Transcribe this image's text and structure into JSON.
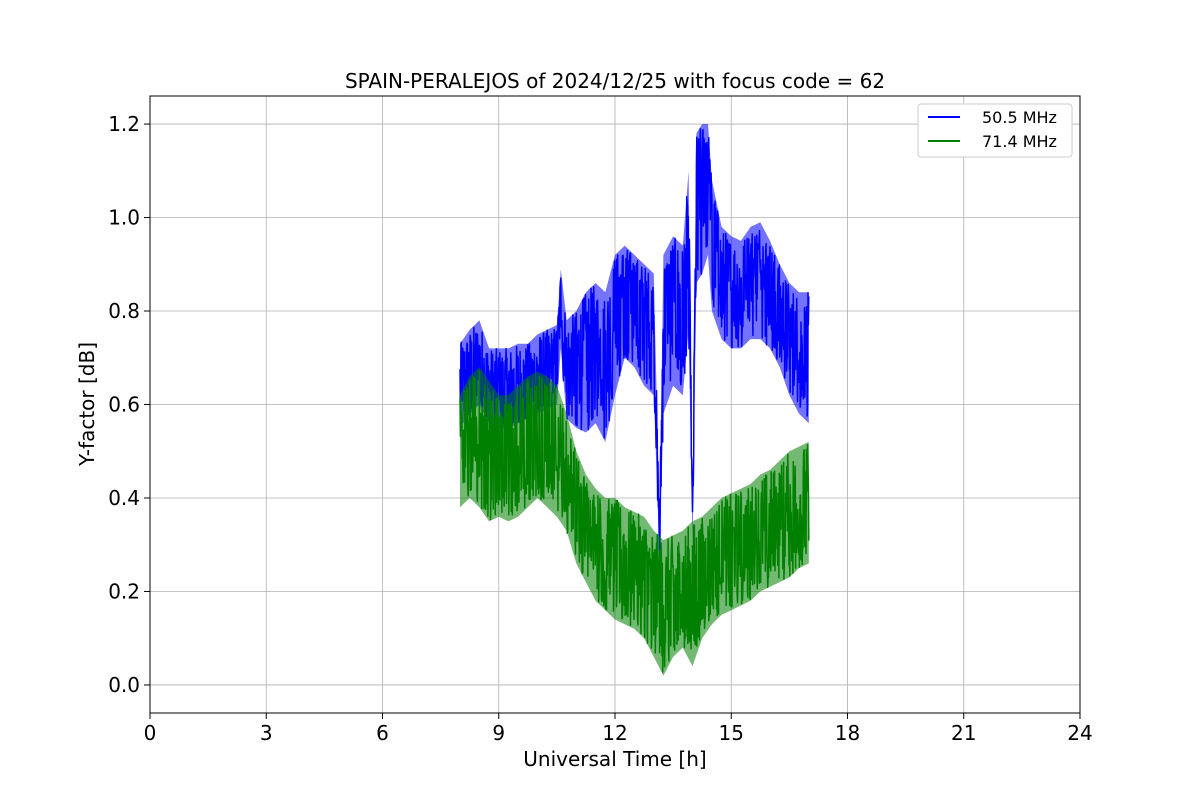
{
  "chart_data": {
    "type": "line",
    "title": "SPAIN-PERALEJOS of 2024/12/25 with focus code = 62",
    "xlabel": "Universal Time [h]",
    "ylabel": "Y-factor [dB]",
    "xlim": [
      0,
      24
    ],
    "ylim": [
      -0.06,
      1.26
    ],
    "xticks": [
      0,
      3,
      6,
      9,
      12,
      15,
      18,
      21,
      24
    ],
    "xtick_labels": [
      "0",
      "3",
      "6",
      "9",
      "12",
      "15",
      "18",
      "21",
      "24"
    ],
    "yticks": [
      0.0,
      0.2,
      0.4,
      0.6,
      0.8,
      1.0,
      1.2
    ],
    "ytick_labels": [
      "0.0",
      "0.2",
      "0.4",
      "0.6",
      "0.8",
      "1.0",
      "1.2"
    ],
    "grid": true,
    "legend_position": "top-right",
    "series": [
      {
        "name": "50.5 MHz",
        "color": "#0000ff",
        "x": [
          8.0,
          8.25,
          8.5,
          8.75,
          9.0,
          9.25,
          9.5,
          9.75,
          10.0,
          10.25,
          10.5,
          10.6,
          10.75,
          11.0,
          11.25,
          11.5,
          11.75,
          12.0,
          12.25,
          12.5,
          12.75,
          13.0,
          13.15,
          13.25,
          13.5,
          13.75,
          13.9,
          14.0,
          14.1,
          14.25,
          14.4,
          14.5,
          14.75,
          15.0,
          15.25,
          15.5,
          15.75,
          16.0,
          16.25,
          16.5,
          16.75,
          17.0
        ],
        "y": [
          0.64,
          0.66,
          0.68,
          0.64,
          0.63,
          0.63,
          0.64,
          0.64,
          0.66,
          0.67,
          0.68,
          0.84,
          0.68,
          0.7,
          0.71,
          0.72,
          0.68,
          0.82,
          0.86,
          0.84,
          0.8,
          0.76,
          0.3,
          0.78,
          0.84,
          0.8,
          0.95,
          0.33,
          1.05,
          1.1,
          1.17,
          0.98,
          0.86,
          0.85,
          0.84,
          0.88,
          0.9,
          0.86,
          0.8,
          0.74,
          0.7,
          0.65
        ],
        "lower": [
          0.55,
          0.58,
          0.6,
          0.56,
          0.55,
          0.55,
          0.56,
          0.57,
          0.58,
          0.59,
          0.6,
          0.72,
          0.57,
          0.55,
          0.54,
          0.56,
          0.52,
          0.62,
          0.7,
          0.68,
          0.64,
          0.62,
          0.27,
          0.58,
          0.64,
          0.62,
          0.76,
          0.3,
          0.86,
          0.88,
          0.92,
          0.8,
          0.74,
          0.72,
          0.72,
          0.74,
          0.74,
          0.72,
          0.68,
          0.62,
          0.58,
          0.56
        ],
        "upper": [
          0.73,
          0.76,
          0.78,
          0.72,
          0.72,
          0.72,
          0.73,
          0.73,
          0.75,
          0.76,
          0.77,
          0.89,
          0.78,
          0.8,
          0.84,
          0.86,
          0.84,
          0.92,
          0.94,
          0.92,
          0.9,
          0.88,
          0.35,
          0.92,
          0.96,
          0.94,
          1.1,
          0.38,
          1.18,
          1.2,
          1.2,
          1.08,
          0.98,
          0.96,
          0.95,
          0.98,
          0.99,
          0.95,
          0.9,
          0.86,
          0.84,
          0.84
        ]
      },
      {
        "name": "71.4 MHz",
        "color": "#008000",
        "x": [
          8.0,
          8.25,
          8.5,
          8.75,
          9.0,
          9.25,
          9.5,
          9.75,
          10.0,
          10.25,
          10.5,
          10.75,
          11.0,
          11.25,
          11.5,
          11.75,
          12.0,
          12.25,
          12.5,
          12.75,
          13.0,
          13.25,
          13.5,
          13.75,
          14.0,
          14.25,
          14.5,
          14.75,
          15.0,
          15.25,
          15.5,
          15.75,
          16.0,
          16.25,
          16.5,
          16.75,
          17.0
        ],
        "y": [
          0.5,
          0.52,
          0.51,
          0.5,
          0.49,
          0.48,
          0.5,
          0.52,
          0.53,
          0.5,
          0.49,
          0.44,
          0.38,
          0.34,
          0.3,
          0.28,
          0.28,
          0.27,
          0.26,
          0.24,
          0.2,
          0.18,
          0.19,
          0.2,
          0.22,
          0.23,
          0.26,
          0.27,
          0.28,
          0.28,
          0.29,
          0.31,
          0.32,
          0.34,
          0.35,
          0.37,
          0.38
        ],
        "lower": [
          0.38,
          0.4,
          0.38,
          0.35,
          0.36,
          0.35,
          0.36,
          0.38,
          0.4,
          0.38,
          0.36,
          0.33,
          0.26,
          0.22,
          0.18,
          0.16,
          0.14,
          0.13,
          0.12,
          0.1,
          0.06,
          0.02,
          0.06,
          0.08,
          0.04,
          0.1,
          0.13,
          0.15,
          0.16,
          0.17,
          0.18,
          0.2,
          0.21,
          0.22,
          0.23,
          0.25,
          0.26
        ],
        "upper": [
          0.62,
          0.66,
          0.68,
          0.65,
          0.62,
          0.62,
          0.64,
          0.66,
          0.67,
          0.66,
          0.64,
          0.58,
          0.5,
          0.45,
          0.42,
          0.4,
          0.4,
          0.38,
          0.37,
          0.36,
          0.33,
          0.31,
          0.32,
          0.33,
          0.35,
          0.36,
          0.38,
          0.4,
          0.41,
          0.42,
          0.43,
          0.45,
          0.46,
          0.48,
          0.5,
          0.51,
          0.52
        ]
      }
    ]
  }
}
